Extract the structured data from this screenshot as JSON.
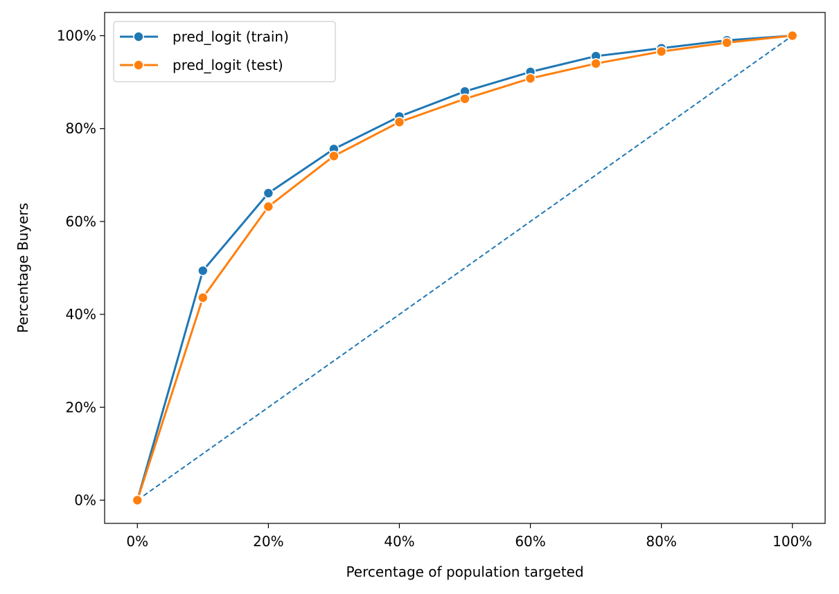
{
  "chart_data": {
    "type": "line",
    "title": "",
    "xlabel": "Percentage of population targeted",
    "ylabel": "Percentage Buyers",
    "x": [
      0,
      10,
      20,
      30,
      40,
      50,
      60,
      70,
      80,
      90,
      100
    ],
    "x_tick_labels": [
      "0%",
      "20%",
      "40%",
      "60%",
      "80%",
      "100%"
    ],
    "y_tick_labels": [
      "0%",
      "20%",
      "40%",
      "60%",
      "80%",
      "100%"
    ],
    "xlim": [
      -5,
      105
    ],
    "ylim": [
      -5,
      105
    ],
    "grid": false,
    "legend_position": "top-left",
    "series": [
      {
        "name": "pred_logit (train)",
        "color": "#1f77b4",
        "values": [
          0,
          49.4,
          66.1,
          75.6,
          82.6,
          88.0,
          92.2,
          95.6,
          97.3,
          99.0,
          100
        ]
      },
      {
        "name": "pred_logit (test)",
        "color": "#ff7f0e",
        "values": [
          0,
          43.6,
          63.2,
          74.1,
          81.4,
          86.4,
          90.8,
          94.0,
          96.6,
          98.5,
          100
        ]
      }
    ],
    "reference_line": {
      "style": "dashed",
      "color": "#1f77b4",
      "x": [
        0,
        100
      ],
      "values": [
        0,
        100
      ]
    }
  }
}
